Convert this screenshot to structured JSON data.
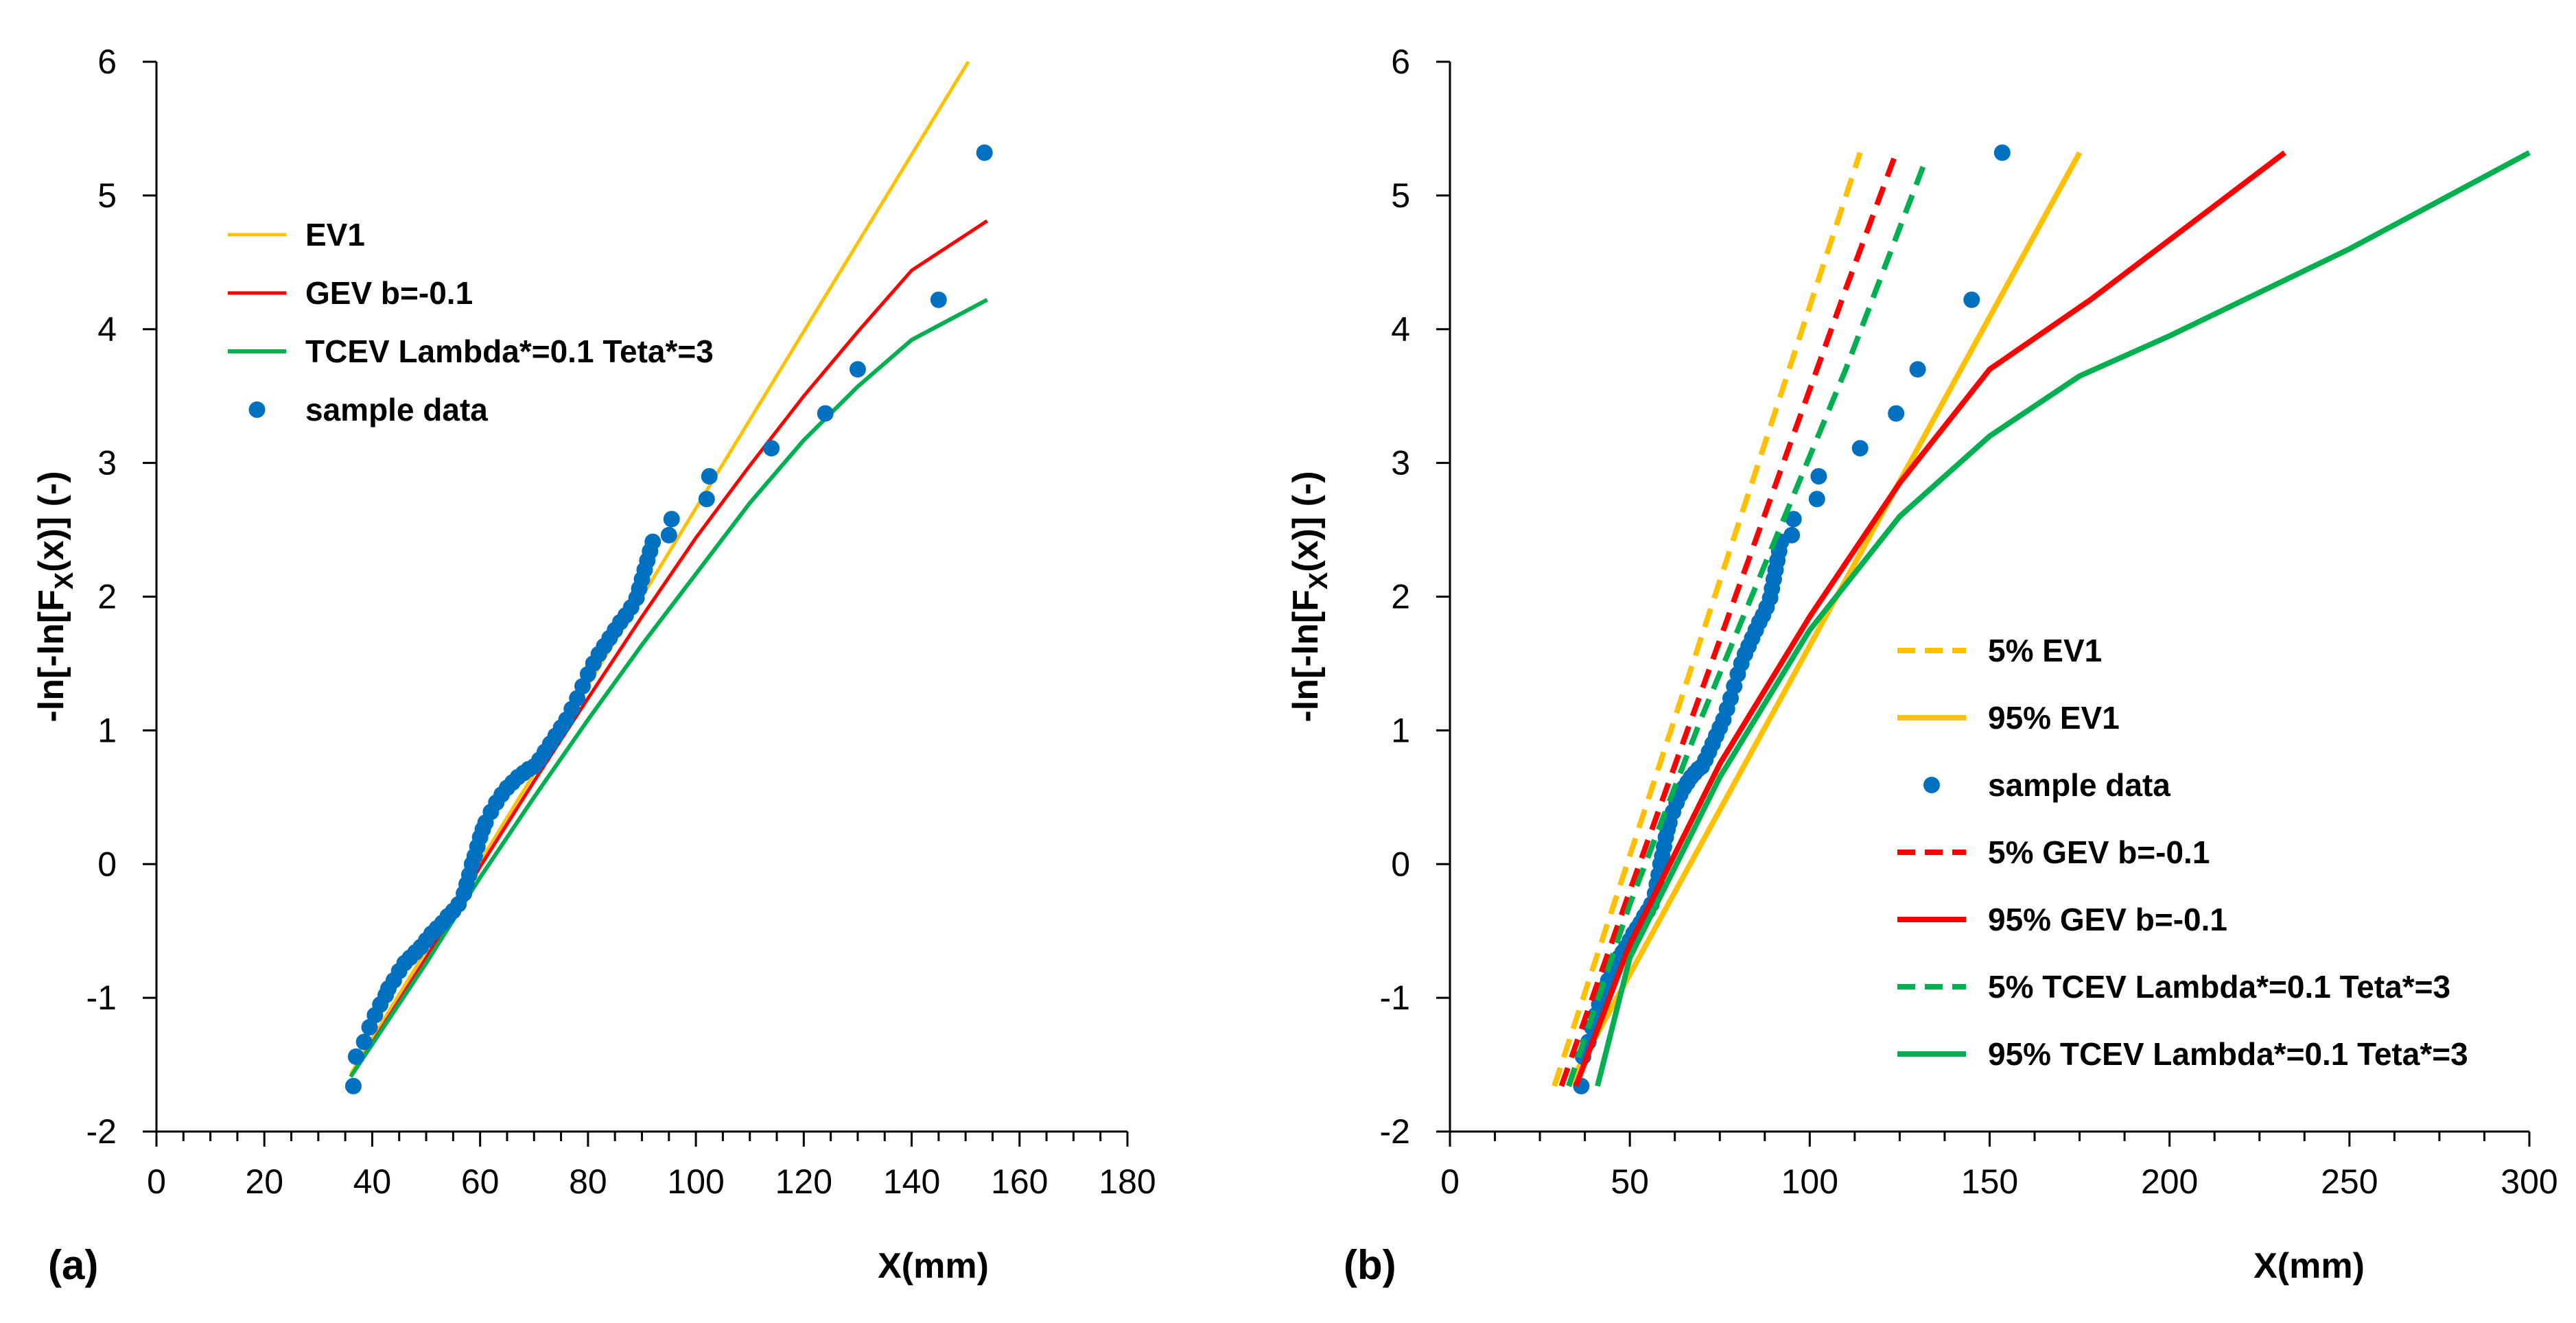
{
  "chart_data": [
    {
      "panel_label": "(a)",
      "type": "line",
      "xlabel": "X(mm)",
      "ylabel_parts": {
        "pre": "-ln[-ln[F",
        "sub": "X",
        "post": "(x)]  (-)"
      },
      "xlim": [
        0,
        180
      ],
      "ylim": [
        -2,
        6
      ],
      "xticks": [
        0,
        20,
        40,
        60,
        80,
        100,
        120,
        140,
        160,
        180
      ],
      "yticks": [
        -2,
        -1,
        0,
        1,
        2,
        3,
        4,
        5,
        6
      ],
      "legend_position": "upper-left",
      "series": [
        {
          "name": "EV1",
          "kind": "line",
          "dash": "solid",
          "color": "#FFC000",
          "width": 5,
          "x": [
            36,
            150.5
          ],
          "y": [
            -1.57,
            6.0
          ]
        },
        {
          "name": "GEV b=-0.1",
          "kind": "line",
          "dash": "solid",
          "color": "#FF0000",
          "width": 5,
          "x": [
            36,
            50,
            60,
            70,
            80,
            90,
            100,
            110,
            120,
            130,
            140,
            154
          ],
          "y": [
            -1.59,
            -0.7,
            -0.02,
            0.62,
            1.24,
            1.85,
            2.44,
            2.98,
            3.5,
            3.98,
            4.44,
            4.81
          ]
        },
        {
          "name": "TCEV Lambda*=0.1 Teta*=3",
          "kind": "line",
          "dash": "solid",
          "color": "#00B050",
          "width": 6,
          "x": [
            36,
            50,
            60,
            70,
            80,
            90,
            100,
            110,
            120,
            130,
            140,
            154
          ],
          "y": [
            -1.59,
            -0.74,
            -0.1,
            0.5,
            1.08,
            1.64,
            2.17,
            2.7,
            3.17,
            3.57,
            3.92,
            4.22
          ]
        },
        {
          "name": "sample data",
          "kind": "scatter",
          "color": "#0070C0",
          "x": [
            36.5,
            37.0,
            38.5,
            39.5,
            40.5,
            41.5,
            42.5,
            43.0,
            44.0,
            45.0,
            46.0,
            47.0,
            48.0,
            49.0,
            50.0,
            51.0,
            52.0,
            53.0,
            54.0,
            55.0,
            56.0,
            57.0,
            57.5,
            58.0,
            58.5,
            59.0,
            59.5,
            60.0,
            60.5,
            61.0,
            62.0,
            63.0,
            64.0,
            65.0,
            66.0,
            67.0,
            68.0,
            69.0,
            70.0,
            71.0,
            72.0,
            73.0,
            74.0,
            75.0,
            76.0,
            77.0,
            78.0,
            79.0,
            80.0,
            81.0,
            82.0,
            83.0,
            84.0,
            85.0,
            86.0,
            87.0,
            88.0,
            89.0,
            89.5,
            90.0,
            90.5,
            91.0,
            91.5,
            92.0,
            95.0,
            95.5,
            102.0,
            102.5,
            114.0,
            124.0,
            130.0,
            145.0,
            153.5
          ],
          "y": [
            -1.66,
            -1.44,
            -1.33,
            -1.22,
            -1.13,
            -1.05,
            -0.98,
            -0.93,
            -0.87,
            -0.8,
            -0.74,
            -0.7,
            -0.66,
            -0.62,
            -0.57,
            -0.52,
            -0.48,
            -0.44,
            -0.39,
            -0.35,
            -0.3,
            -0.22,
            -0.15,
            -0.08,
            0.0,
            0.06,
            0.13,
            0.2,
            0.26,
            0.31,
            0.39,
            0.46,
            0.52,
            0.57,
            0.61,
            0.65,
            0.68,
            0.71,
            0.73,
            0.78,
            0.84,
            0.9,
            0.96,
            1.02,
            1.08,
            1.16,
            1.24,
            1.33,
            1.42,
            1.5,
            1.57,
            1.63,
            1.69,
            1.75,
            1.81,
            1.86,
            1.92,
            1.99,
            2.06,
            2.13,
            2.2,
            2.27,
            2.34,
            2.41,
            2.46,
            2.58,
            2.73,
            2.9,
            3.11,
            3.37,
            3.7,
            4.22,
            5.32
          ]
        }
      ]
    },
    {
      "panel_label": "(b)",
      "type": "line",
      "xlabel": "X(mm)",
      "ylabel_parts": {
        "pre": "-ln[-ln[F",
        "sub": "X",
        "post": "(x)]  (-)"
      },
      "xlim": [
        0,
        300
      ],
      "ylim": [
        -2,
        6
      ],
      "xticks": [
        0,
        50,
        100,
        150,
        200,
        250,
        300
      ],
      "yticks": [
        -2,
        -1,
        0,
        1,
        2,
        3,
        4,
        5,
        6
      ],
      "legend_position": "lower-right",
      "series": [
        {
          "name": "5% EV1",
          "kind": "line",
          "dash": "dashed",
          "color": "#FFC000",
          "width": 8,
          "x": [
            29,
            114
          ],
          "y": [
            -1.66,
            5.32
          ]
        },
        {
          "name": "95% EV1",
          "kind": "line",
          "dash": "solid",
          "color": "#FFC000",
          "width": 8,
          "x": [
            33,
            175
          ],
          "y": [
            -1.66,
            5.32
          ]
        },
        {
          "name": "sample data",
          "kind": "scatter",
          "color": "#0070C0",
          "x": [
            36.5,
            37.0,
            38.5,
            39.5,
            40.5,
            41.5,
            42.5,
            43.0,
            44.0,
            45.0,
            46.0,
            47.0,
            48.0,
            49.0,
            50.0,
            51.0,
            52.0,
            53.0,
            54.0,
            55.0,
            56.0,
            57.0,
            57.5,
            58.0,
            58.5,
            59.0,
            59.5,
            60.0,
            60.5,
            61.0,
            62.0,
            63.0,
            64.0,
            65.0,
            66.0,
            67.0,
            68.0,
            69.0,
            70.0,
            71.0,
            72.0,
            73.0,
            74.0,
            75.0,
            76.0,
            77.0,
            78.0,
            79.0,
            80.0,
            81.0,
            82.0,
            83.0,
            84.0,
            85.0,
            86.0,
            87.0,
            88.0,
            89.0,
            89.5,
            90.0,
            90.5,
            91.0,
            91.5,
            92.0,
            95.0,
            95.5,
            102.0,
            102.5,
            114.0,
            124.0,
            130.0,
            145.0,
            153.5
          ],
          "y": [
            -1.66,
            -1.44,
            -1.33,
            -1.22,
            -1.13,
            -1.05,
            -0.98,
            -0.93,
            -0.87,
            -0.8,
            -0.74,
            -0.7,
            -0.66,
            -0.62,
            -0.57,
            -0.52,
            -0.48,
            -0.44,
            -0.39,
            -0.35,
            -0.3,
            -0.22,
            -0.15,
            -0.08,
            0.0,
            0.06,
            0.13,
            0.2,
            0.26,
            0.31,
            0.39,
            0.46,
            0.52,
            0.57,
            0.61,
            0.65,
            0.68,
            0.71,
            0.73,
            0.78,
            0.84,
            0.9,
            0.96,
            1.02,
            1.08,
            1.16,
            1.24,
            1.33,
            1.42,
            1.5,
            1.57,
            1.63,
            1.69,
            1.75,
            1.81,
            1.86,
            1.92,
            1.99,
            2.06,
            2.13,
            2.2,
            2.27,
            2.34,
            2.41,
            2.46,
            2.58,
            2.73,
            2.9,
            3.11,
            3.37,
            3.7,
            4.22,
            5.32
          ]
        },
        {
          "name": "5% GEV b=-0.1",
          "kind": "line",
          "dash": "dashed",
          "color": "#FF0000",
          "width": 8,
          "x": [
            31,
            50,
            70,
            90,
            110,
            124
          ],
          "y": [
            -1.66,
            -0.2,
            1.3,
            2.8,
            4.3,
            5.32
          ]
        },
        {
          "name": "95% GEV b=-0.1",
          "kind": "line",
          "dash": "solid",
          "color": "#FF0000",
          "width": 8,
          "x": [
            35,
            50,
            75,
            100,
            125,
            150,
            178,
            232
          ],
          "y": [
            -1.66,
            -0.6,
            0.75,
            1.85,
            2.85,
            3.7,
            4.22,
            5.32
          ]
        },
        {
          "name": "5% TCEV Lambda*=0.1 Teta*=3",
          "kind": "line",
          "dash": "dashed",
          "color": "#00B050",
          "width": 8,
          "x": [
            33,
            50,
            70,
            90,
            110,
            132
          ],
          "y": [
            -1.66,
            -0.3,
            1.1,
            2.4,
            3.7,
            5.25
          ]
        },
        {
          "name": "95% TCEV Lambda*=0.1 Teta*=3",
          "kind": "line",
          "dash": "solid",
          "color": "#00B050",
          "width": 8,
          "x": [
            41,
            50,
            75,
            100,
            125,
            150,
            175,
            200,
            250,
            300
          ],
          "y": [
            -1.66,
            -0.7,
            0.65,
            1.75,
            2.6,
            3.2,
            3.65,
            3.95,
            4.6,
            5.32
          ]
        }
      ]
    }
  ]
}
